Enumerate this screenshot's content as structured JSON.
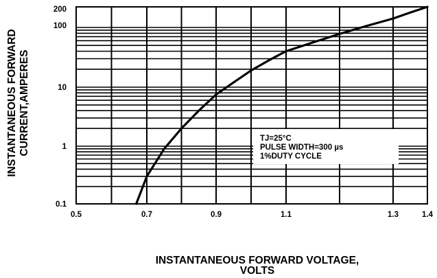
{
  "chart_data": {
    "type": "line",
    "xlabel_lines": [
      "INSTANTANEOUS FORWARD VOLTAGE,",
      "VOLTS"
    ],
    "ylabel_lines": [
      "INSTANTANEOUS FORWARD",
      "CURRENT,AMPERES"
    ],
    "x_tick_labels": [
      "0.5",
      "0.7",
      "0.9",
      "1.1",
      "1.3",
      "1.4"
    ],
    "x_tick_values": [
      0.5,
      0.7,
      0.9,
      1.1,
      1.3,
      1.4
    ],
    "y_tick_labels": [
      "0.1",
      "1",
      "10",
      "100",
      "200"
    ],
    "y_tick_values": [
      0.1,
      1,
      10,
      100,
      200
    ],
    "xlim": [
      0.5,
      1.4
    ],
    "ylim": [
      0.1,
      200
    ],
    "y_scale": "log",
    "grid": true,
    "annotation": [
      "TJ=25°C",
      "PULSE WIDTH=300 µs",
      "1%DUTY CYCLE"
    ],
    "series": [
      {
        "x": [
          0.67,
          0.7,
          0.75,
          0.8,
          0.85,
          0.9,
          0.95,
          1.0,
          1.05,
          1.1,
          1.15,
          1.2,
          1.25,
          1.3,
          1.35,
          1.4
        ],
        "y": [
          0.1,
          0.3,
          0.9,
          2.0,
          4.0,
          7.5,
          12,
          19,
          28,
          40,
          56,
          78,
          105,
          135,
          165,
          200
        ]
      }
    ]
  }
}
